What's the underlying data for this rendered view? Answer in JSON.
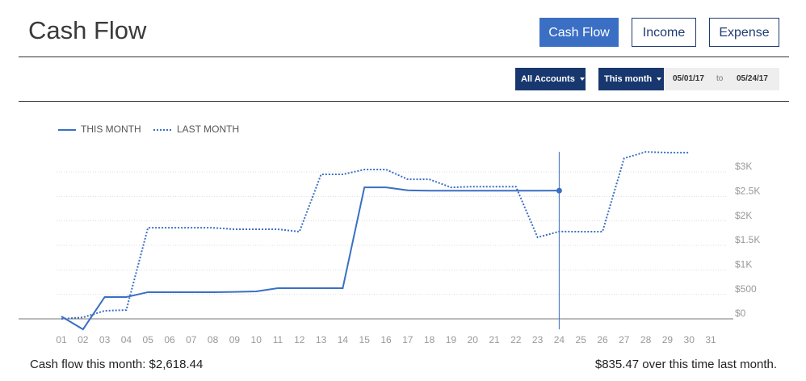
{
  "header": {
    "title": "Cash Flow",
    "tabs": [
      {
        "label": "Cash Flow",
        "active": true
      },
      {
        "label": "Income",
        "active": false
      },
      {
        "label": "Expense",
        "active": false
      }
    ]
  },
  "filters": {
    "accounts": "All Accounts",
    "period": "This month",
    "date_from": "05/01/17",
    "date_sep": "to",
    "date_to": "05/24/17"
  },
  "chart_data": {
    "type": "line",
    "categories": [
      "01",
      "02",
      "03",
      "04",
      "05",
      "06",
      "07",
      "08",
      "09",
      "10",
      "11",
      "12",
      "13",
      "14",
      "15",
      "16",
      "17",
      "18",
      "19",
      "20",
      "21",
      "22",
      "23",
      "24",
      "25",
      "26",
      "27",
      "28",
      "29",
      "30",
      "31"
    ],
    "series": [
      {
        "name": "THIS MONTH",
        "color": "#3a6fc4",
        "style": "solid",
        "values": [
          50,
          -214,
          445,
          445,
          545,
          545,
          545,
          545,
          550,
          560,
          626,
          626,
          626,
          626,
          2685,
          2685,
          2625,
          2618,
          2618,
          2618,
          2618,
          2618,
          2618,
          2618.44,
          null,
          null,
          null,
          null,
          null,
          null,
          null
        ]
      },
      {
        "name": "LAST MONTH",
        "color": "#3a6fc4",
        "style": "dotted",
        "values": [
          0,
          30,
          165,
          180,
          1860,
          1860,
          1860,
          1860,
          1830,
          1830,
          1830,
          1780,
          2950,
          2950,
          3050,
          3050,
          2850,
          2850,
          2685,
          2700,
          2700,
          2700,
          1665,
          1783,
          1780,
          1780,
          3280,
          3410,
          3395,
          3395,
          null
        ]
      }
    ],
    "ylim": [
      -300,
      3500
    ],
    "yticks": [
      {
        "value": 0,
        "label": "$0"
      },
      {
        "value": 500,
        "label": "$500"
      },
      {
        "value": 1000,
        "label": "$1K"
      },
      {
        "value": 1500,
        "label": "$1.5K"
      },
      {
        "value": 2000,
        "label": "$2K"
      },
      {
        "value": 2500,
        "label": "$2.5K"
      },
      {
        "value": 3000,
        "label": "$3K"
      }
    ],
    "grid": true,
    "cursor_category": "24"
  },
  "footer": {
    "summary": "Cash flow this month: $2,618.44",
    "comparison": "$835.47 over this time last month."
  }
}
